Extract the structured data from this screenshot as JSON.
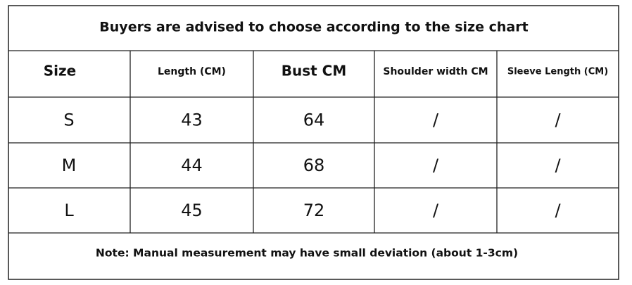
{
  "table": {
    "title": "Buyers are advised to choose according to the size chart",
    "header": [
      "Size",
      "Length (CM)",
      "Bust CM",
      "Shoulder width CM",
      "Sleeve Length (CM)"
    ],
    "rows": [
      [
        "S",
        43,
        64,
        "/",
        "/"
      ],
      [
        "M",
        44,
        68,
        "/",
        "/"
      ],
      [
        "L",
        45,
        72,
        "/",
        "/"
      ]
    ],
    "note": "Note: Manual measurement may have small deviation (about 1-3cm)"
  }
}
